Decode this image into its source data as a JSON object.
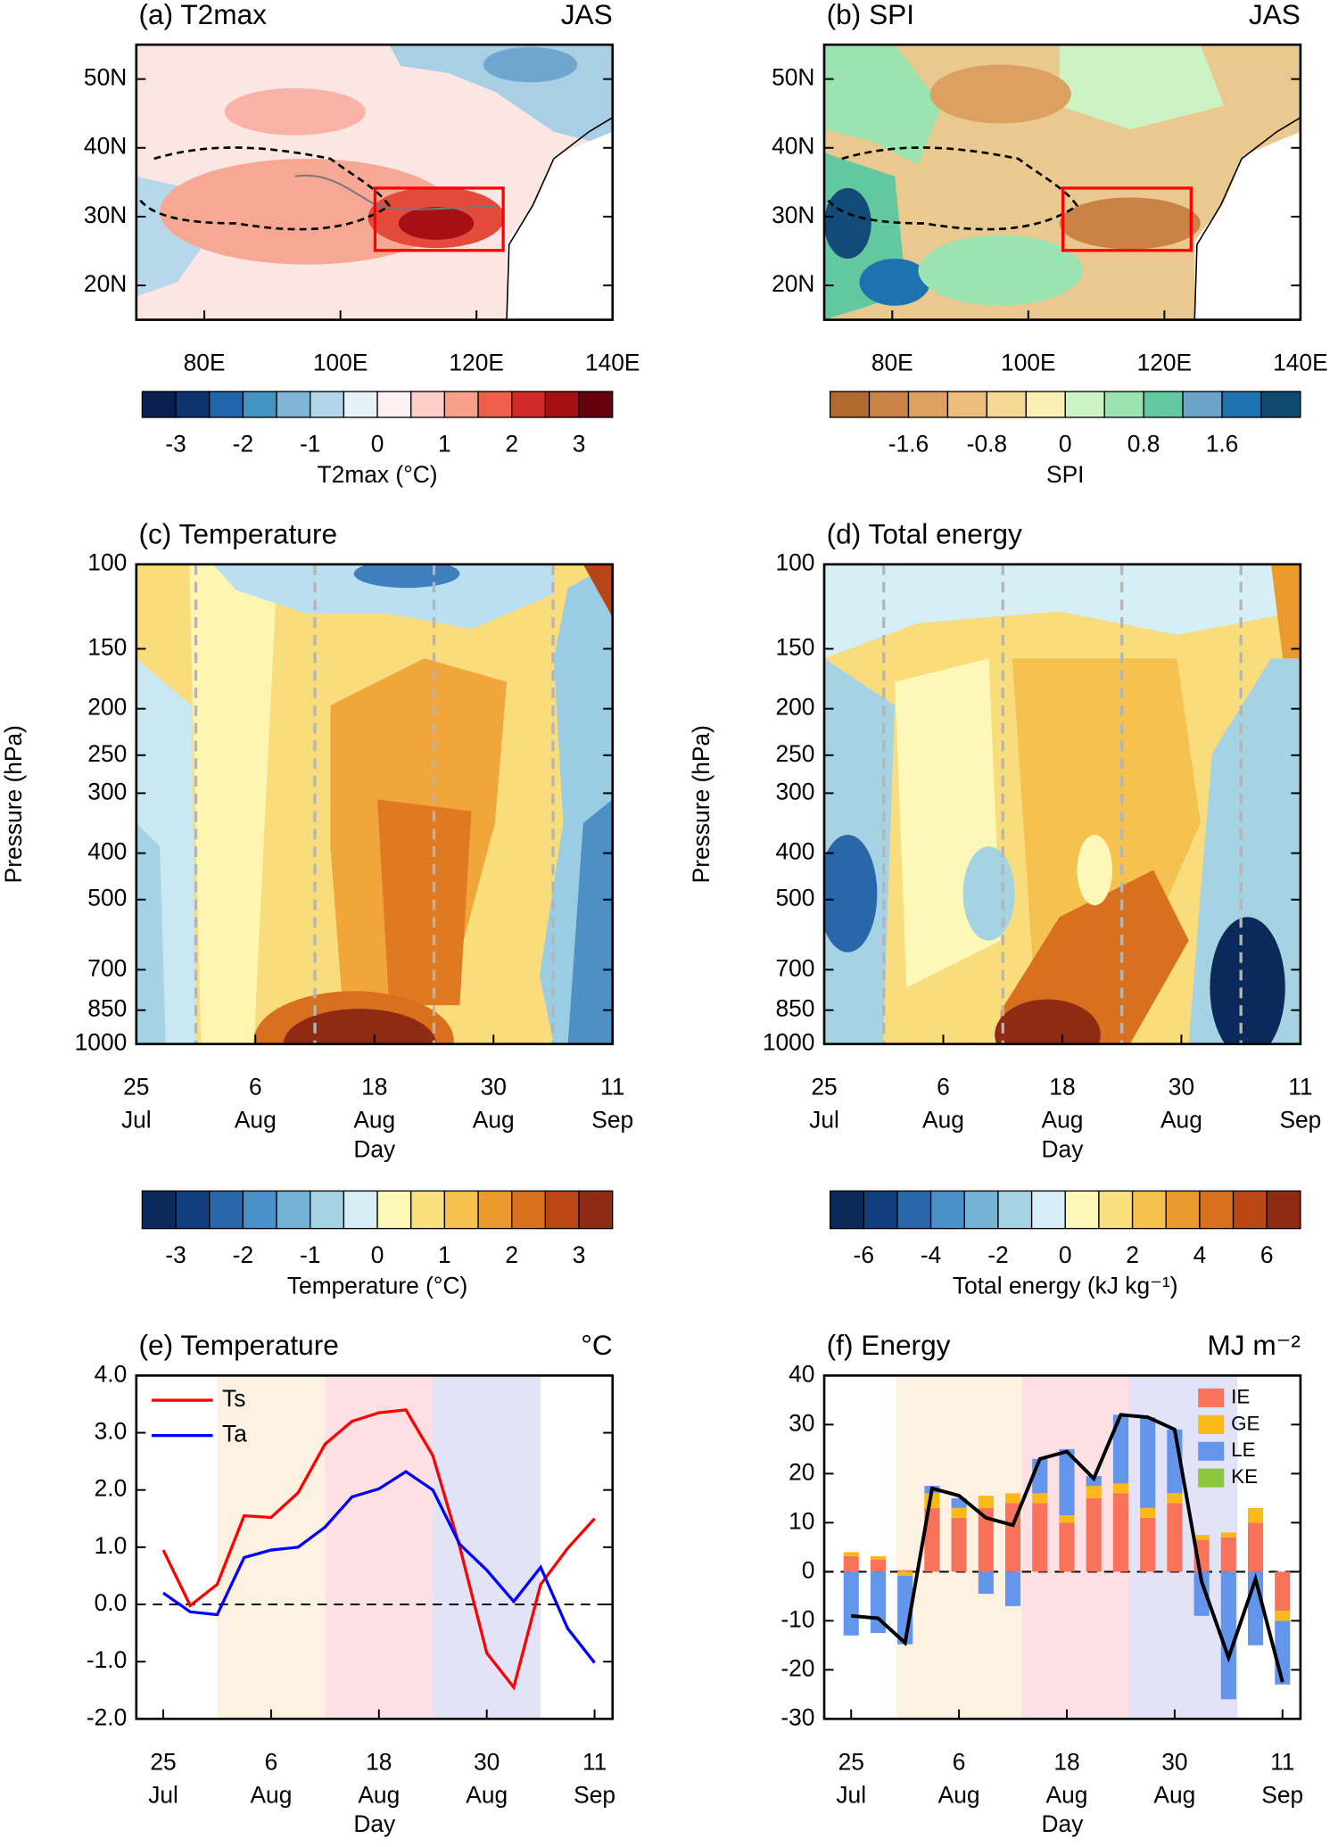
{
  "chart_data": [
    {
      "type": "map",
      "title": "(a) T2max",
      "season": "JAS",
      "xlim": [
        70,
        140
      ],
      "ylim": [
        15,
        55
      ],
      "xticks": [
        {
          "value": 80,
          "label": "80E"
        },
        {
          "value": 100,
          "label": "100E"
        },
        {
          "value": 120,
          "label": "120E"
        },
        {
          "value": 140,
          "label": "140E"
        }
      ],
      "yticks": [
        {
          "value": 20,
          "label": "20N"
        },
        {
          "value": 30,
          "label": "30N"
        },
        {
          "value": 40,
          "label": "40N"
        },
        {
          "value": 50,
          "label": "50N"
        }
      ],
      "colorbar": {
        "label": "T2max (°C)",
        "lim": [
          -3.5,
          3.5
        ],
        "ticks": [
          -3,
          -2,
          -1,
          0,
          1,
          2,
          3
        ],
        "colors": [
          "#0a1f4e",
          "#10336f",
          "#2166ac",
          "#4393c3",
          "#7fb4d6",
          "#b1d6e8",
          "#e5f2f8",
          "#fdf0f2",
          "#fdcfc6",
          "#f9a08a",
          "#ee5e4a",
          "#d22b27",
          "#a50f15",
          "#67000d"
        ]
      }
    },
    {
      "type": "map",
      "title": "(b) SPI",
      "season": "JAS",
      "xlim": [
        70,
        140
      ],
      "ylim": [
        15,
        55
      ],
      "xticks": [
        {
          "value": 80,
          "label": "80E"
        },
        {
          "value": 100,
          "label": "100E"
        },
        {
          "value": 120,
          "label": "120E"
        },
        {
          "value": 140,
          "label": "140E"
        }
      ],
      "yticks": [
        {
          "value": 20,
          "label": "20N"
        },
        {
          "value": 30,
          "label": "30N"
        },
        {
          "value": 40,
          "label": "40N"
        },
        {
          "value": 50,
          "label": "50N"
        }
      ],
      "colorbar": {
        "label": "SPI",
        "lim": [
          -2.4,
          2.4
        ],
        "ticks": [
          -1.6,
          -0.8,
          0,
          0.8,
          1.6
        ],
        "colors": [
          "#b06a2f",
          "#c98345",
          "#dca160",
          "#ecbd7b",
          "#f5d894",
          "#fbf0b4",
          "#cdf2c4",
          "#9be3b0",
          "#62c8a0",
          "#6aa3c7",
          "#1f72b0",
          "#0d4a6e"
        ]
      }
    },
    {
      "type": "contour",
      "title": "(c) Temperature",
      "xlabel": "Day",
      "ylabel": "Pressure (hPa)",
      "xlim": [
        "07-25",
        "09-11"
      ],
      "ylim": [
        1000,
        100
      ],
      "yscale": "log",
      "xticks": [
        {
          "value": "07-25",
          "label": [
            "25",
            "Jul"
          ]
        },
        {
          "value": "08-06",
          "label": [
            "6",
            "Aug"
          ]
        },
        {
          "value": "08-18",
          "label": [
            "18",
            "Aug"
          ]
        },
        {
          "value": "08-30",
          "label": [
            "30",
            "Aug"
          ]
        },
        {
          "value": "09-11",
          "label": [
            "11",
            "Sep"
          ]
        }
      ],
      "yticks": [
        100,
        150,
        200,
        250,
        300,
        400,
        500,
        700,
        850,
        1000
      ],
      "dividers": [
        "07-31",
        "08-12",
        "08-24",
        "09-05"
      ],
      "colorbar": {
        "label": "Temperature (°C)",
        "lim": [
          -3.5,
          3.5
        ],
        "ticks": [
          -3,
          -2,
          -1,
          0,
          1,
          2,
          3
        ],
        "colors": [
          "#0b2a5c",
          "#123e7d",
          "#2a66aa",
          "#4890c7",
          "#74b2d6",
          "#a6d3e4",
          "#d6eef5",
          "#fdf7b8",
          "#fae07e",
          "#f6c24f",
          "#eb9a2d",
          "#d9701d",
          "#bb4714",
          "#8f2a13"
        ]
      }
    },
    {
      "type": "contour",
      "title": "(d) Total energy",
      "xlabel": "Day",
      "ylabel": "Pressure (hPa)",
      "xlim": [
        "07-25",
        "09-11"
      ],
      "ylim": [
        1000,
        100
      ],
      "yscale": "log",
      "xticks": [
        {
          "value": "07-25",
          "label": [
            "25",
            "Jul"
          ]
        },
        {
          "value": "08-06",
          "label": [
            "6",
            "Aug"
          ]
        },
        {
          "value": "08-18",
          "label": [
            "18",
            "Aug"
          ]
        },
        {
          "value": "08-30",
          "label": [
            "30",
            "Aug"
          ]
        },
        {
          "value": "09-11",
          "label": [
            "11",
            "Sep"
          ]
        }
      ],
      "yticks": [
        100,
        150,
        200,
        250,
        300,
        400,
        500,
        700,
        850,
        1000
      ],
      "dividers": [
        "07-31",
        "08-12",
        "08-24",
        "09-05"
      ],
      "colorbar": {
        "label": "Total energy (kJ kg⁻¹)",
        "lim": [
          -7,
          7
        ],
        "ticks": [
          -6,
          -4,
          -2,
          0,
          2,
          4,
          6
        ],
        "colors": [
          "#0b2a5c",
          "#123e7d",
          "#2a66aa",
          "#4890c7",
          "#74b2d6",
          "#a6d3e4",
          "#d6eef5",
          "#fdf7b8",
          "#fae07e",
          "#f6c24f",
          "#eb9a2d",
          "#d9701d",
          "#bb4714",
          "#8f2a13"
        ]
      }
    },
    {
      "type": "line",
      "title": "(e) Temperature",
      "unit": "°C",
      "xlabel": "Day",
      "x": [
        "07-25",
        "07-28",
        "07-31",
        "08-03",
        "08-06",
        "08-09",
        "08-12",
        "08-15",
        "08-18",
        "08-21",
        "08-24",
        "08-27",
        "08-30",
        "09-02",
        "09-05",
        "09-08",
        "09-11"
      ],
      "xlim": [
        "07-22",
        "09-13"
      ],
      "ylim": [
        -2,
        4
      ],
      "xticks": [
        {
          "value": "07-25",
          "label": [
            "25",
            "Jul"
          ]
        },
        {
          "value": "08-06",
          "label": [
            "6",
            "Aug"
          ]
        },
        {
          "value": "08-18",
          "label": [
            "18",
            "Aug"
          ]
        },
        {
          "value": "08-30",
          "label": [
            "30",
            "Aug"
          ]
        },
        {
          "value": "09-11",
          "label": [
            "11",
            "Sep"
          ]
        }
      ],
      "yticks": [
        {
          "value": -2,
          "label": "-2.0"
        },
        {
          "value": -1,
          "label": "-1.0"
        },
        {
          "value": 0,
          "label": "0.0"
        },
        {
          "value": 1,
          "label": "1.0"
        },
        {
          "value": 2,
          "label": "2.0"
        },
        {
          "value": 3,
          "label": "3.0"
        },
        {
          "value": 4,
          "label": "4.0"
        }
      ],
      "reference_line": 0,
      "periods": [
        {
          "start": "07-31",
          "end": "08-12",
          "color": "#fdf1e1"
        },
        {
          "start": "08-12",
          "end": "08-24",
          "color": "#fce0e3"
        },
        {
          "start": "08-24",
          "end": "09-05",
          "color": "#e3e3f8"
        }
      ],
      "series": [
        {
          "name": "Ts",
          "color": "#ff0000",
          "values": [
            0.95,
            -0.02,
            0.35,
            1.55,
            1.52,
            1.95,
            2.8,
            3.2,
            3.35,
            3.4,
            2.6,
            1.0,
            -0.85,
            -1.45,
            0.35,
            0.98,
            1.5
          ]
        },
        {
          "name": "Ta",
          "color": "#0000ff",
          "values": [
            0.2,
            -0.13,
            -0.18,
            0.82,
            0.95,
            1.0,
            1.35,
            1.88,
            2.02,
            2.32,
            2.0,
            1.05,
            0.6,
            0.05,
            0.65,
            -0.42,
            -1.02
          ]
        }
      ]
    },
    {
      "type": "bar_line",
      "title": "(f) Energy",
      "unit": "MJ m⁻²",
      "xlabel": "Day",
      "x": [
        "07-25",
        "07-28",
        "07-31",
        "08-03",
        "08-06",
        "08-09",
        "08-12",
        "08-15",
        "08-18",
        "08-21",
        "08-24",
        "08-27",
        "08-30",
        "09-02",
        "09-05",
        "09-08",
        "09-11"
      ],
      "xlim": [
        "07-22",
        "09-13"
      ],
      "ylim": [
        -30,
        40
      ],
      "xticks": [
        {
          "value": "07-25",
          "label": [
            "25",
            "Jul"
          ]
        },
        {
          "value": "08-06",
          "label": [
            "6",
            "Aug"
          ]
        },
        {
          "value": "08-18",
          "label": [
            "18",
            "Aug"
          ]
        },
        {
          "value": "08-30",
          "label": [
            "30",
            "Aug"
          ]
        },
        {
          "value": "09-11",
          "label": [
            "11",
            "Sep"
          ]
        }
      ],
      "yticks": [
        -30,
        -20,
        -10,
        0,
        10,
        20,
        30,
        40
      ],
      "reference_line": 0,
      "periods": [
        {
          "start": "07-30",
          "end": "08-13",
          "color": "#fdf1e1"
        },
        {
          "start": "08-13",
          "end": "08-25",
          "color": "#fce0e3"
        },
        {
          "start": "08-25",
          "end": "09-06",
          "color": "#e3e3f8"
        }
      ],
      "series": [
        {
          "name": "IE",
          "color": "#f9735b",
          "values": [
            3.2,
            2.5,
            0.3,
            13,
            11,
            13,
            14,
            14,
            10,
            15,
            16,
            11,
            14,
            6.5,
            7,
            10,
            -8
          ]
        },
        {
          "name": "GE",
          "color": "#fbb917",
          "values": [
            0.8,
            0.7,
            -0.8,
            3,
            2,
            2.5,
            2,
            2,
            1.5,
            2.5,
            2,
            2,
            2,
            1,
            1,
            3,
            -2
          ]
        },
        {
          "name": "LE",
          "color": "#6495ed",
          "values": [
            -13,
            -12.5,
            -14,
            1.5,
            2,
            -4.5,
            -7,
            7,
            13.5,
            2,
            14,
            18.5,
            13,
            -9,
            -26,
            -15,
            -13
          ]
        },
        {
          "name": "KE",
          "color": "#8dc63f",
          "values": [
            0,
            0,
            0,
            0,
            0,
            0,
            0,
            0,
            0,
            0,
            0,
            0,
            0,
            0,
            0,
            0,
            0
          ]
        }
      ],
      "line": {
        "color": "#000000",
        "values": [
          -9,
          -9.5,
          -14.5,
          17,
          15.5,
          11,
          9.5,
          23,
          24.5,
          19,
          32,
          31.5,
          29,
          -2,
          -17.5,
          -1.5,
          -22.5
        ]
      }
    }
  ]
}
